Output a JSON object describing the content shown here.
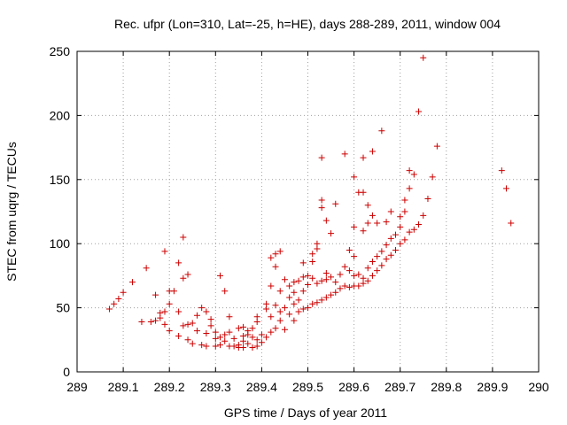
{
  "chart_data": {
    "type": "scatter",
    "title": "Rec. ufpr (Lon=310, Lat=-25, h=HE), days 288-289, 2011, window 004",
    "xlabel": "GPS time / Days of year 2011",
    "ylabel": "STEC from uqrg / TECUs",
    "xlim": [
      289,
      290
    ],
    "ylim": [
      0,
      250
    ],
    "x_ticks": [
      289,
      289.1,
      289.2,
      289.3,
      289.4,
      289.5,
      289.6,
      289.7,
      289.8,
      289.9,
      290
    ],
    "x_tick_labels": [
      "289",
      "289.1",
      "289.2",
      "289.3",
      "289.4",
      "289.5",
      "289.6",
      "289.7",
      "289.8",
      "289.9",
      "290"
    ],
    "y_ticks": [
      0,
      50,
      100,
      150,
      200,
      250
    ],
    "y_tick_labels": [
      "0",
      "50",
      "100",
      "150",
      "200",
      "250"
    ],
    "grid": true,
    "marker": "+",
    "color": "#cc0000",
    "points": [
      [
        289.07,
        49
      ],
      [
        289.08,
        53
      ],
      [
        289.09,
        57
      ],
      [
        289.1,
        62
      ],
      [
        289.12,
        70
      ],
      [
        289.14,
        39
      ],
      [
        289.15,
        81
      ],
      [
        289.16,
        39
      ],
      [
        289.17,
        40
      ],
      [
        289.17,
        60
      ],
      [
        289.18,
        46
      ],
      [
        289.18,
        42
      ],
      [
        289.19,
        94
      ],
      [
        289.19,
        47
      ],
      [
        289.19,
        37
      ],
      [
        289.2,
        32
      ],
      [
        289.2,
        53
      ],
      [
        289.2,
        63
      ],
      [
        289.21,
        63
      ],
      [
        289.22,
        85
      ],
      [
        289.22,
        47
      ],
      [
        289.22,
        28
      ],
      [
        289.23,
        36
      ],
      [
        289.23,
        105
      ],
      [
        289.23,
        73
      ],
      [
        289.24,
        25
      ],
      [
        289.24,
        76
      ],
      [
        289.24,
        37
      ],
      [
        289.25,
        22
      ],
      [
        289.25,
        38
      ],
      [
        289.26,
        32
      ],
      [
        289.26,
        44
      ],
      [
        289.27,
        50
      ],
      [
        289.27,
        21
      ],
      [
        289.28,
        47
      ],
      [
        289.28,
        30
      ],
      [
        289.28,
        20
      ],
      [
        289.29,
        41
      ],
      [
        289.29,
        36
      ],
      [
        289.3,
        20
      ],
      [
        289.3,
        31
      ],
      [
        289.3,
        26
      ],
      [
        289.31,
        75
      ],
      [
        289.31,
        27
      ],
      [
        289.31,
        21
      ],
      [
        289.32,
        63
      ],
      [
        289.32,
        24
      ],
      [
        289.32,
        29
      ],
      [
        289.33,
        20
      ],
      [
        289.33,
        31
      ],
      [
        289.33,
        43
      ],
      [
        289.34,
        20
      ],
      [
        289.34,
        26
      ],
      [
        289.35,
        21
      ],
      [
        289.35,
        34
      ],
      [
        289.35,
        19
      ],
      [
        289.36,
        24
      ],
      [
        289.36,
        28
      ],
      [
        289.36,
        35
      ],
      [
        289.36,
        19
      ],
      [
        289.37,
        22
      ],
      [
        289.37,
        29
      ],
      [
        289.37,
        32
      ],
      [
        289.38,
        19
      ],
      [
        289.38,
        27
      ],
      [
        289.38,
        34
      ],
      [
        289.39,
        20
      ],
      [
        289.39,
        25
      ],
      [
        289.39,
        39
      ],
      [
        289.39,
        43
      ],
      [
        289.4,
        23
      ],
      [
        289.4,
        29
      ],
      [
        289.41,
        27
      ],
      [
        289.41,
        49
      ],
      [
        289.41,
        53
      ],
      [
        289.42,
        31
      ],
      [
        289.42,
        43
      ],
      [
        289.42,
        89
      ],
      [
        289.42,
        67
      ],
      [
        289.43,
        34
      ],
      [
        289.43,
        52
      ],
      [
        289.43,
        92
      ],
      [
        289.43,
        82
      ],
      [
        289.44,
        40
      ],
      [
        289.44,
        63
      ],
      [
        289.44,
        47
      ],
      [
        289.44,
        94
      ],
      [
        289.45,
        33
      ],
      [
        289.45,
        50
      ],
      [
        289.45,
        72
      ],
      [
        289.46,
        45
      ],
      [
        289.46,
        58
      ],
      [
        289.46,
        67
      ],
      [
        289.47,
        40
      ],
      [
        289.47,
        53
      ],
      [
        289.47,
        62
      ],
      [
        289.47,
        70
      ],
      [
        289.48,
        47
      ],
      [
        289.48,
        56
      ],
      [
        289.48,
        71
      ],
      [
        289.49,
        49
      ],
      [
        289.49,
        63
      ],
      [
        289.49,
        74
      ],
      [
        289.49,
        85
      ],
      [
        289.5,
        50
      ],
      [
        289.5,
        68
      ],
      [
        289.5,
        75
      ],
      [
        289.51,
        53
      ],
      [
        289.51,
        73
      ],
      [
        289.51,
        86
      ],
      [
        289.51,
        92
      ],
      [
        289.52,
        100
      ],
      [
        289.52,
        54
      ],
      [
        289.52,
        69
      ],
      [
        289.52,
        96
      ],
      [
        289.53,
        56
      ],
      [
        289.53,
        71
      ],
      [
        289.53,
        128
      ],
      [
        289.53,
        134
      ],
      [
        289.53,
        167
      ],
      [
        289.54,
        58
      ],
      [
        289.54,
        72
      ],
      [
        289.54,
        77
      ],
      [
        289.54,
        118
      ],
      [
        289.55,
        60
      ],
      [
        289.55,
        74
      ],
      [
        289.55,
        108
      ],
      [
        289.56,
        62
      ],
      [
        289.56,
        70
      ],
      [
        289.56,
        131
      ],
      [
        289.57,
        65
      ],
      [
        289.57,
        76
      ],
      [
        289.58,
        67
      ],
      [
        289.58,
        82
      ],
      [
        289.58,
        170
      ],
      [
        289.59,
        66
      ],
      [
        289.59,
        79
      ],
      [
        289.59,
        95
      ],
      [
        289.6,
        67
      ],
      [
        289.6,
        75
      ],
      [
        289.6,
        90
      ],
      [
        289.6,
        113
      ],
      [
        289.6,
        152
      ],
      [
        289.61,
        67
      ],
      [
        289.61,
        76
      ],
      [
        289.61,
        140
      ],
      [
        289.62,
        69
      ],
      [
        289.62,
        73
      ],
      [
        289.62,
        110
      ],
      [
        289.62,
        140
      ],
      [
        289.62,
        167
      ],
      [
        289.63,
        71
      ],
      [
        289.63,
        81
      ],
      [
        289.63,
        116
      ],
      [
        289.63,
        130
      ],
      [
        289.64,
        75
      ],
      [
        289.64,
        86
      ],
      [
        289.64,
        122
      ],
      [
        289.64,
        172
      ],
      [
        289.65,
        79
      ],
      [
        289.65,
        90
      ],
      [
        289.65,
        116
      ],
      [
        289.66,
        83
      ],
      [
        289.66,
        94
      ],
      [
        289.66,
        188
      ],
      [
        289.67,
        88
      ],
      [
        289.67,
        99
      ],
      [
        289.67,
        117
      ],
      [
        289.68,
        91
      ],
      [
        289.68,
        104
      ],
      [
        289.68,
        125
      ],
      [
        289.69,
        95
      ],
      [
        289.69,
        107
      ],
      [
        289.7,
        100
      ],
      [
        289.7,
        113
      ],
      [
        289.7,
        121
      ],
      [
        289.71,
        103
      ],
      [
        289.71,
        125
      ],
      [
        289.71,
        134
      ],
      [
        289.72,
        109
      ],
      [
        289.72,
        143
      ],
      [
        289.72,
        157
      ],
      [
        289.73,
        111
      ],
      [
        289.73,
        154
      ],
      [
        289.74,
        115
      ],
      [
        289.74,
        203
      ],
      [
        289.75,
        122
      ],
      [
        289.75,
        245
      ],
      [
        289.76,
        135
      ],
      [
        289.77,
        152
      ],
      [
        289.78,
        176
      ],
      [
        289.92,
        157
      ],
      [
        289.93,
        143
      ],
      [
        289.94,
        116
      ]
    ]
  }
}
